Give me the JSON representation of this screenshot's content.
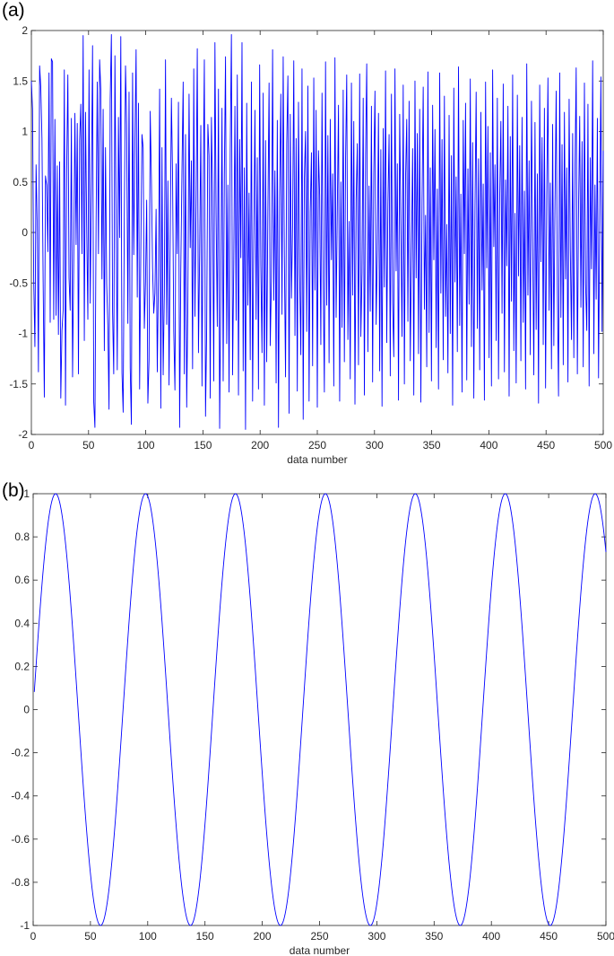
{
  "chart_data": [
    {
      "panel_label": "(a)",
      "type": "line",
      "title": "",
      "xlabel": "data number",
      "ylabel": "",
      "xlim": [
        0,
        500
      ],
      "ylim": [
        -2,
        2
      ],
      "xticks": [
        "0",
        "50",
        "100",
        "150",
        "200",
        "250",
        "300",
        "350",
        "400",
        "450",
        "500"
      ],
      "yticks": [
        "2",
        "1.5",
        "1",
        "0.5",
        "0",
        "-0.5",
        "-1",
        "-1.5",
        "-2"
      ],
      "grid": false,
      "line_color": "#0000ff",
      "series": [
        {
          "values": [
            1.5,
            1.22,
            -0.49,
            -1.13,
            0.67,
            0.07,
            -1.38,
            1.65,
            1.44,
            0.93,
            -0.49,
            -1.63,
            0.56,
            0.47,
            -0.19,
            1.58,
            -0.89,
            1.72,
            1.69,
            -0.86,
            1.12,
            -0.82,
            0.66,
            -1.01,
            0.7,
            -1.64,
            -0.97,
            -0.77,
            1.61,
            -1.71,
            0.62,
            1.56,
            -0.45,
            -0.77,
            1.13,
            -1.43,
            -0.27,
            1.18,
            -0.12,
            1.08,
            -1.4,
            0.91,
            1.27,
            -0.21,
            1.95,
            -1.07,
            1.19,
            0.07,
            -0.86,
            1.61,
            -0.7,
            0.44,
            1.85,
            -1.68,
            -1.93,
            0.1,
            1.49,
            -0.21,
            1.71,
            1.42,
            -0.46,
            1.22,
            -1.17,
            0.84,
            -0.51,
            -0.92,
            -1.75,
            1.32,
            1.96,
            -0.79,
            -1.4,
            1.75,
            0.15,
            -1.36,
            1.14,
            -0.05,
            1.94,
            -1.39,
            -1.78,
            0.17,
            1.65,
            1.07,
            -0.9,
            1.39,
            -1.34,
            -1.9,
            1.58,
            -0.22,
            0.9,
            1.81,
            -0.64,
            1.28,
            -1.55,
            -0.18,
            0.97,
            0.84,
            -0.95,
            -0.49,
            0.32,
            -1.69,
            -1.26,
            1.2,
            0.53,
            -0.35,
            -0.8,
            -0.6,
            0.23,
            -1.38,
            -0.43,
            1.42,
            -1.74,
            0.84,
            -1.41,
            -0.6,
            1.71,
            -0.91,
            0.51,
            -1.51,
            -0.02,
            1.33,
            0.55,
            -0.98,
            -1.56,
            0.68,
            -0.21,
            1.29,
            -1.93,
            -0.36,
            0.62,
            1.49,
            -1.4,
            0.97,
            -1.73,
            -0.68,
            1.37,
            -0.15,
            0.71,
            -1.35,
            1.62,
            -0.83,
            0.29,
            1.82,
            -1.19,
            -0.22,
            1.06,
            -1.52,
            0.41,
            1.71,
            -1.82,
            -0.95,
            1.07,
            0.76,
            -1.64,
            1.14,
            0.38,
            -1.47,
            1.88,
            0.17,
            -0.93,
            1.42,
            -1.94,
            -0.56,
            1.23,
            -1.47,
            0.57,
            1.74,
            -1.1,
            0.47,
            -1.58,
            0.81,
            1.96,
            -1.41,
            -0.31,
            1.25,
            -0.87,
            1.56,
            -1.61,
            0.92,
            -0.25,
            1.88,
            -1.37,
            0.64,
            -1.95,
            1.28,
            -0.72,
            0.39,
            -1.26,
            1.49,
            -1.67,
            -0.1,
            1.21,
            -0.86,
            0.74,
            -1.55,
            1.66,
            -0.33,
            -1.19,
            1.38,
            -1.71,
            0.91,
            -1.28,
            0.2,
            1.48,
            -1.12,
            -0.48,
            1.81,
            -0.67,
            0.61,
            -1.49,
            1.11,
            -1.93,
            0.36,
            1.37,
            -0.81,
            1.74,
            -0.23,
            -1.43,
            0.88,
            1.55,
            -1.79,
            1.17,
            -0.65,
            0.07,
            1.7,
            -1.02,
            0.93,
            -1.57,
            1.29,
            -0.41,
            -1.21,
            1.62,
            -1.85,
            0.54,
            1.0,
            -0.98,
            1.45,
            -1.67,
            0.2,
            0.79,
            -1.32,
            1.53,
            -0.57,
            1.21,
            -1.73,
            0.81,
            0.37,
            -1.11,
            1.38,
            -0.46,
            -1.58,
            1.69,
            -0.72,
            0.96,
            -1.29,
            1.12,
            -0.27,
            0.58,
            -1.52,
            1.73,
            -0.84,
            0.24,
            1.26,
            -1.67,
            0.5,
            -0.94,
            1.41,
            -1.28,
            0.71,
            1.56,
            -1.06,
            0.11,
            -1.45,
            1.48,
            -0.62,
            1.1,
            -1.7,
            0.33,
            0.88,
            -1.31,
            1.57,
            -1.03,
            -0.4,
            1.33,
            -1.61,
            0.77,
            1.67,
            -1.18,
            0.46,
            -0.78,
            1.25,
            -1.48,
            0.59,
            1.4,
            -0.91,
            -0.17,
            1.18,
            -1.37,
            0.82,
            -1.72,
            1.03,
            -0.54,
            1.6,
            -1.09,
            0.27,
            0.97,
            -1.42,
            1.37,
            -0.7,
            -1.23,
            1.62,
            -0.38,
            0.68,
            -1.66,
            1.17,
            0.06,
            -1.03,
            1.46,
            -1.5,
            0.54,
            1.12,
            -0.88,
            1.3,
            -1.27,
            -0.22,
            0.83,
            -1.61,
            1.5,
            -0.45,
            0.98,
            -1.2,
            1.22,
            -1.68,
            0.31,
            1.44,
            -0.76,
            0.17,
            -1.33,
            1.59,
            -0.99,
            0.64,
            -1.47,
            1.26,
            -0.27,
            1.02,
            -1.14,
            0.43,
            -1.55,
            1.58,
            -0.6,
            0.92,
            -1.26,
            1.35,
            -0.83,
            0.08,
            -1.39,
            1.16,
            -1.0,
            0.76,
            -1.71,
            1.43,
            -0.49,
            0.55,
            -1.18,
            1.64,
            -0.92,
            0.38,
            -1.58,
            1.11,
            -0.21,
            1.28,
            -1.46,
            0.63,
            -0.71,
            1.52,
            -1.13,
            0.89,
            -1.64,
            0.26,
            1.39,
            -0.95,
            0.73,
            -1.36,
            1.19,
            -0.57,
            0.48,
            -1.66,
            1.49,
            -0.35,
            1.05,
            -1.24,
            0.79,
            -1.52,
            1.61,
            -0.14,
            0.67,
            -1.07,
            1.33,
            -1.45,
            0.34,
            1.1,
            -0.8,
            1.47,
            -1.38,
            0.52,
            -0.33,
            1.25,
            -1.62,
            0.95,
            -0.68,
            1.56,
            -1.17,
            0.19,
            -1.49,
            1.36,
            -0.43,
            0.86,
            -1.27,
            1.14,
            -0.89,
            0.41,
            -1.55,
            1.67,
            -0.62,
            0.71,
            -1.21,
            1.3,
            -0.06,
            -1.41,
            1.09,
            -0.96,
            0.58,
            -1.69,
            1.46,
            -0.29,
            0.94,
            -1.11,
            1.23,
            -1.54,
            0.37,
            1.53,
            -0.77,
            0.49,
            -1.35,
            1.07,
            -1.12,
            0.29,
            1.4,
            -0.55,
            -1.62,
            1.58,
            -0.84,
            0.87,
            -1.31,
            1.19,
            -0.46,
            0.64,
            -1.48,
            1.32,
            -0.16,
            -1.06,
            0.98,
            -1.24,
            0.62,
            1.63,
            -1.4,
            0.22,
            1.15,
            -0.74,
            0.9,
            -1.33,
            1.48,
            -0.51,
            -0.97,
            1.27,
            -1.52,
            0.74,
            -0.36,
            1.7,
            -1.2,
            0.47,
            -0.66,
            1.13,
            -1.44,
            0.15,
            1.54,
            -0.98,
            0.81
          ]
        }
      ]
    },
    {
      "panel_label": "(b)",
      "type": "line",
      "title": "",
      "xlabel": "data number",
      "ylabel": "",
      "xlim": [
        0,
        500
      ],
      "ylim": [
        -1,
        1
      ],
      "xticks": [
        "0",
        "50",
        "100",
        "150",
        "200",
        "250",
        "300",
        "350",
        "400",
        "450",
        "500"
      ],
      "yticks": [
        "1",
        "0.8",
        "0.6",
        "0.4",
        "0.2",
        "0",
        "-0.2",
        "-0.4",
        "-0.6",
        "-0.8",
        "-1"
      ],
      "grid": false,
      "line_color": "#0000ff",
      "series": [
        {
          "function": "sin",
          "period": 78.5,
          "peaks_at": [
            19.6,
            98.1,
            176.6,
            255.1,
            333.6,
            412.1,
            490.6
          ],
          "troughs_at": [
            58.9,
            137.4,
            215.9,
            294.4,
            372.9,
            451.4
          ],
          "x_start": 1,
          "x_end": 500,
          "y_start": 0.08,
          "y_end": 0.75
        }
      ]
    }
  ]
}
